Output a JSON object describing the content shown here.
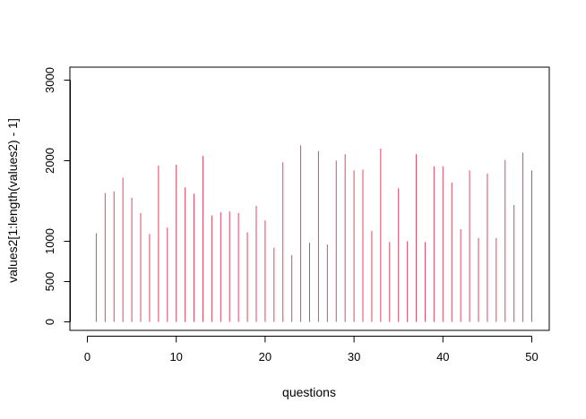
{
  "chart_data": {
    "type": "bar",
    "style": "histogram-lines",
    "xlabel": "questions",
    "ylabel": "values2[1:length(values2) - 1]",
    "xlim": [
      0,
      50
    ],
    "ylim": [
      0,
      3000
    ],
    "x_ticks": [
      0,
      10,
      20,
      30,
      40,
      50
    ],
    "y_ticks": [
      0,
      500,
      1000,
      2000,
      3000
    ],
    "grid": false,
    "line_color": "#e0455f",
    "x": [
      1,
      2,
      3,
      4,
      5,
      6,
      7,
      8,
      9,
      10,
      11,
      12,
      13,
      14,
      15,
      16,
      17,
      18,
      19,
      20,
      21,
      22,
      23,
      24,
      25,
      26,
      27,
      28,
      29,
      30,
      31,
      32,
      33,
      34,
      35,
      36,
      37,
      38,
      39,
      40,
      41,
      42,
      43,
      44,
      45,
      46,
      47,
      48,
      49,
      50
    ],
    "values": [
      1100,
      1600,
      1620,
      1790,
      1540,
      1350,
      1090,
      1940,
      1170,
      1950,
      1670,
      1590,
      2060,
      1320,
      1360,
      1370,
      1350,
      1110,
      1440,
      1260,
      920,
      1980,
      830,
      2190,
      980,
      2120,
      960,
      2000,
      2080,
      1880,
      1890,
      1130,
      2150,
      990,
      1660,
      1000,
      2080,
      990,
      1930,
      1930,
      1730,
      1150,
      1880,
      1040,
      1840,
      1040,
      2010,
      1450,
      2100,
      1880
    ]
  }
}
